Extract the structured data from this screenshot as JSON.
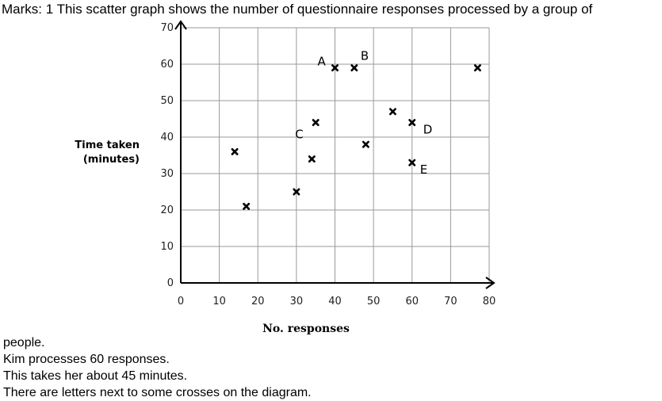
{
  "question": {
    "intro": "Marks: 1 This scatter graph shows the number of questionnaire responses processed by a group of",
    "lines": [
      "people.",
      "Kim processes 60 responses.",
      "This takes her about 45 minutes.",
      "There are letters next to some crosses on the diagram."
    ]
  },
  "chart_data": {
    "type": "scatter",
    "xlabel": "No. responses",
    "ylabel_lines": [
      "Time taken",
      "(minutes)"
    ],
    "xlim": [
      0,
      80
    ],
    "ylim": [
      0,
      70
    ],
    "xticks": [
      0,
      10,
      20,
      30,
      40,
      50,
      60,
      70,
      80
    ],
    "yticks": [
      0,
      10,
      20,
      30,
      40,
      50,
      60,
      70
    ],
    "grid": true,
    "points": [
      {
        "x": 14,
        "y": 36,
        "label": ""
      },
      {
        "x": 17,
        "y": 21,
        "label": ""
      },
      {
        "x": 30,
        "y": 25,
        "label": ""
      },
      {
        "x": 34,
        "y": 34,
        "label": ""
      },
      {
        "x": 35,
        "y": 44,
        "label": "C"
      },
      {
        "x": 40,
        "y": 59,
        "label": "A"
      },
      {
        "x": 45,
        "y": 59,
        "label": "B"
      },
      {
        "x": 48,
        "y": 38,
        "label": ""
      },
      {
        "x": 55,
        "y": 47,
        "label": ""
      },
      {
        "x": 60,
        "y": 44,
        "label": "D"
      },
      {
        "x": 60,
        "y": 33,
        "label": "E"
      },
      {
        "x": 77,
        "y": 59,
        "label": ""
      }
    ]
  }
}
